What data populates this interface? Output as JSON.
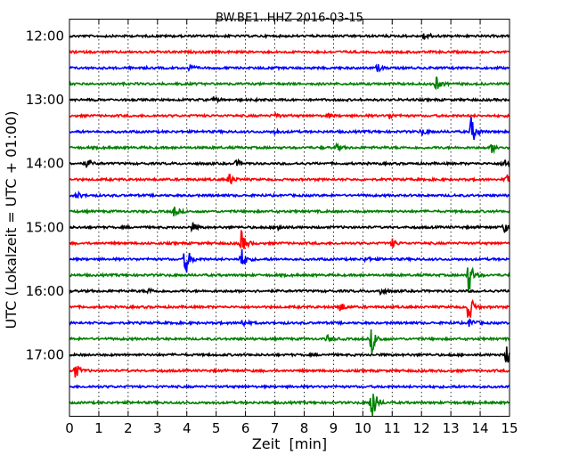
{
  "chart_data": {
    "type": "line",
    "title": "BW.BE1..HHZ 2016-03-15",
    "xlabel": "Zeit  [min]",
    "ylabel": "UTC (Lokalzeit = UTC + 01:00)",
    "xlim": [
      0,
      15
    ],
    "x_ticks": [
      "0",
      "1",
      "2",
      "3",
      "4",
      "5",
      "6",
      "7",
      "8",
      "9",
      "10",
      "11",
      "12",
      "13",
      "14",
      "15"
    ],
    "y_ticks": [
      "12:00",
      "13:00",
      "14:00",
      "15:00",
      "16:00",
      "17:00"
    ],
    "grid": "vertical dotted",
    "trace_colors": [
      "#000000",
      "#ff0000",
      "#0000ff",
      "#008000"
    ],
    "series": [
      {
        "start": "12:00",
        "events": [
          {
            "t": 12.1,
            "amp": 0.3
          }
        ]
      },
      {
        "start": "12:15",
        "events": []
      },
      {
        "start": "12:30",
        "events": [
          {
            "t": 4.05,
            "amp": 0.2
          },
          {
            "t": 10.5,
            "amp": 0.2
          }
        ]
      },
      {
        "start": "12:45",
        "events": [
          {
            "t": 12.5,
            "amp": 0.4
          }
        ]
      },
      {
        "start": "13:00",
        "events": [
          {
            "t": 4.9,
            "amp": 0.15
          }
        ]
      },
      {
        "start": "13:15",
        "events": [
          {
            "t": 7.0,
            "amp": 0.15
          },
          {
            "t": 8.8,
            "amp": 0.15
          },
          {
            "t": 10.9,
            "amp": 0.15
          }
        ]
      },
      {
        "start": "13:30",
        "events": [
          {
            "t": 13.7,
            "amp": 0.9
          },
          {
            "t": 12.0,
            "amp": 0.2
          },
          {
            "t": 7.0,
            "amp": 0.15
          }
        ]
      },
      {
        "start": "13:45",
        "events": [
          {
            "t": 14.4,
            "amp": 0.3
          },
          {
            "t": 9.1,
            "amp": 0.2
          }
        ]
      },
      {
        "start": "14:00",
        "events": [
          {
            "t": 0.6,
            "amp": 0.25
          },
          {
            "t": 5.7,
            "amp": 0.2
          },
          {
            "t": 14.8,
            "amp": 0.35
          }
        ]
      },
      {
        "start": "14:15",
        "events": [
          {
            "t": 5.45,
            "amp": 0.35
          },
          {
            "t": 14.9,
            "amp": 0.3
          }
        ]
      },
      {
        "start": "14:30",
        "events": [
          {
            "t": 0.25,
            "amp": 0.2
          }
        ]
      },
      {
        "start": "14:45",
        "events": [
          {
            "t": 3.55,
            "amp": 0.3
          }
        ]
      },
      {
        "start": "15:00",
        "events": [
          {
            "t": 4.2,
            "amp": 0.25
          },
          {
            "t": 7.1,
            "amp": 0.25
          },
          {
            "t": 14.8,
            "amp": 0.3
          }
        ]
      },
      {
        "start": "15:15",
        "events": [
          {
            "t": 5.85,
            "amp": 0.75
          },
          {
            "t": 11.0,
            "amp": 0.25
          }
        ]
      },
      {
        "start": "15:30",
        "events": [
          {
            "t": 3.95,
            "amp": 1.0
          },
          {
            "t": 5.85,
            "amp": 0.7
          },
          {
            "t": 10.1,
            "amp": 0.15
          }
        ]
      },
      {
        "start": "15:45",
        "events": [
          {
            "t": 13.6,
            "amp": 1.1
          }
        ]
      },
      {
        "start": "16:00",
        "events": [
          {
            "t": 2.7,
            "amp": 0.15
          },
          {
            "t": 10.6,
            "amp": 0.2
          }
        ]
      },
      {
        "start": "16:15",
        "events": [
          {
            "t": 9.2,
            "amp": 0.35
          },
          {
            "t": 13.6,
            "amp": 1.0
          }
        ]
      },
      {
        "start": "16:30",
        "events": [
          {
            "t": 5.9,
            "amp": 0.2
          },
          {
            "t": 13.65,
            "amp": 0.3
          }
        ]
      },
      {
        "start": "16:45",
        "events": [
          {
            "t": 10.3,
            "amp": 0.85
          },
          {
            "t": 8.8,
            "amp": 0.2
          }
        ]
      },
      {
        "start": "17:00",
        "events": [
          {
            "t": 14.9,
            "amp": 0.6
          }
        ]
      },
      {
        "start": "17:15",
        "events": [
          {
            "t": 0.2,
            "amp": 0.45
          }
        ]
      },
      {
        "start": "17:30",
        "events": []
      },
      {
        "start": "17:45",
        "events": [
          {
            "t": 10.3,
            "amp": 1.3
          }
        ]
      }
    ]
  }
}
